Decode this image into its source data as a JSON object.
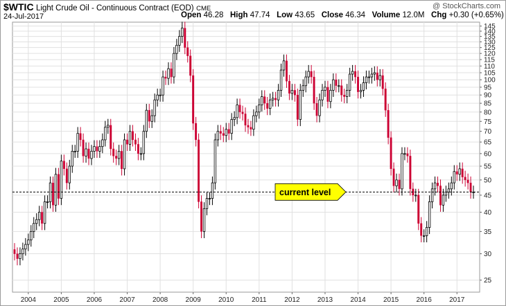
{
  "header": {
    "symbol": "$WTIC",
    "description": "Light Crude Oil - Continuous Contract (EOD)",
    "exchange": "CME",
    "date": "24-Jul-2017",
    "brand": "@ StockCharts.com",
    "ohlc": [
      {
        "label": "Open",
        "value": "46.28"
      },
      {
        "label": "High",
        "value": "47.74"
      },
      {
        "label": "Low",
        "value": "43.65"
      },
      {
        "label": "Close",
        "value": "46.34"
      },
      {
        "label": "Volume",
        "value": "12.0M"
      },
      {
        "label": "Chg",
        "value": "+0.30 (+0.65%)"
      }
    ]
  },
  "annotation": {
    "label": "current level",
    "value": 46,
    "color": "#ffff00"
  },
  "colors": {
    "up": "#000000",
    "down": "#cc0033",
    "grid": "#e0e0e0",
    "level_line": "#000000"
  },
  "chart_data": {
    "type": "candlestick",
    "frequency": "monthly",
    "x_tick_labels": [
      "2004",
      "2005",
      "2006",
      "2007",
      "2008",
      "2009",
      "2010",
      "2011",
      "2012",
      "2013",
      "2014",
      "2015",
      "2016",
      "2017"
    ],
    "y_tick_labels": [
      25,
      30,
      35,
      40,
      45,
      50,
      55,
      60,
      65,
      70,
      75,
      80,
      85,
      90,
      95,
      100,
      105,
      110,
      115,
      120,
      125,
      130,
      135,
      140,
      145
    ],
    "ylim": [
      23,
      149
    ],
    "y_scale": "log",
    "y_axis_side": "right",
    "grid": true,
    "start": "2003-08",
    "closes": [
      30,
      29,
      30,
      31,
      32,
      33,
      35,
      37,
      38,
      40,
      37,
      43,
      43,
      49,
      42,
      52,
      44,
      57,
      54,
      49,
      55,
      61,
      61,
      69,
      66,
      59,
      62,
      58,
      61,
      63,
      61,
      63,
      66,
      72,
      73,
      62,
      59,
      58,
      61,
      54,
      66,
      64,
      70,
      66,
      64,
      60,
      60,
      70,
      81,
      75,
      78,
      87,
      90,
      90,
      102,
      101,
      108,
      102,
      120,
      127,
      135,
      143,
      125,
      118,
      103,
      74,
      66,
      43,
      35,
      41,
      44,
      44,
      49,
      66,
      70,
      69,
      68,
      71,
      69,
      76,
      77,
      84,
      80,
      79,
      73,
      72,
      71,
      78,
      80,
      84,
      89,
      85,
      82,
      87,
      88,
      87,
      93,
      107,
      114,
      99,
      91,
      93,
      90,
      76,
      93,
      96,
      102,
      106,
      102,
      85,
      78,
      87,
      93,
      95,
      86,
      93,
      100,
      96,
      96,
      90,
      89,
      93,
      104,
      106,
      102,
      92,
      93,
      98,
      102,
      102,
      104,
      105,
      100,
      103,
      94,
      81,
      67,
      54,
      48,
      50,
      47,
      60,
      60,
      59,
      47,
      45,
      45,
      37,
      34,
      34,
      36,
      43,
      47,
      49,
      48,
      42,
      45,
      46,
      47,
      49,
      53,
      52,
      54,
      51,
      50,
      49,
      46,
      46
    ],
    "last_close": 46.34
  }
}
